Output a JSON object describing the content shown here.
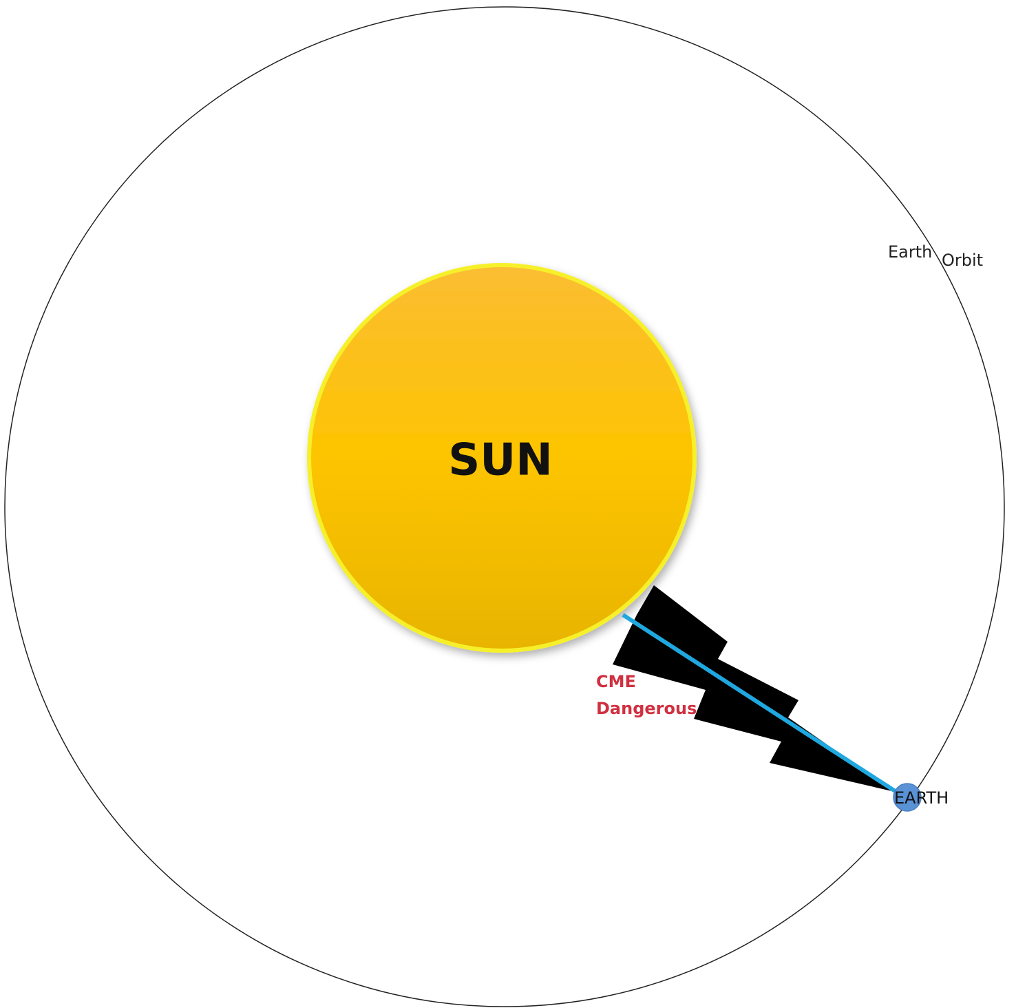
{
  "sun": {
    "label": "SUN"
  },
  "orbit": {
    "label_words": [
      "Earth",
      "Orbit"
    ]
  },
  "cme": {
    "lines": [
      "CME",
      "Dangerous"
    ]
  },
  "earth": {
    "label": "EARTH"
  }
}
